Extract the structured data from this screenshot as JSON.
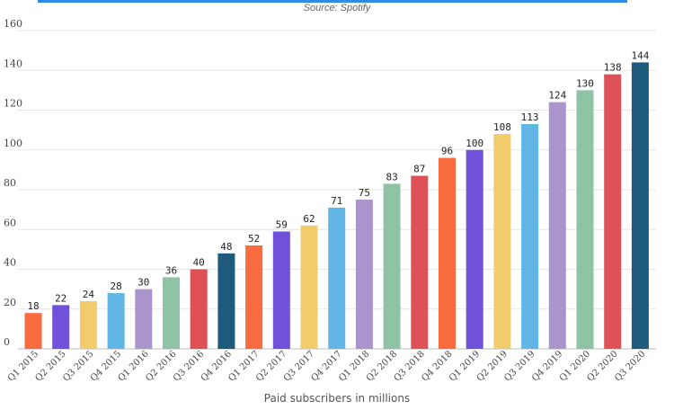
{
  "header": {
    "source": "Source: Spotify"
  },
  "chart_data": {
    "type": "bar",
    "title": "",
    "xlabel": "Paid subscribers in millions",
    "ylabel": "",
    "ylim": [
      0,
      160
    ],
    "yticks": [
      0,
      20,
      40,
      60,
      80,
      100,
      120,
      140,
      160
    ],
    "grid": true,
    "categories": [
      "Q1 2015",
      "Q2 2015",
      "Q3 2015",
      "Q4 2015",
      "Q1 2016",
      "Q2 2016",
      "Q3 2016",
      "Q4 2016",
      "Q1 2017",
      "Q2 2017",
      "Q3 2017",
      "Q4 2017",
      "Q1 2018",
      "Q2 2018",
      "Q3 2018",
      "Q4 2018",
      "Q1 2019",
      "Q2 2019",
      "Q3 2019",
      "Q4 2019",
      "Q1 2020",
      "Q2 2020",
      "Q3 2020"
    ],
    "values": [
      18,
      22,
      24,
      28,
      30,
      36,
      40,
      48,
      52,
      59,
      62,
      71,
      75,
      83,
      87,
      96,
      100,
      108,
      113,
      124,
      130,
      138,
      144
    ],
    "colors": [
      "#f96a3e",
      "#6f52d9",
      "#f2cb6b",
      "#62b6e6",
      "#a994cc",
      "#8fc3a6",
      "#de5157",
      "#1d5a7c",
      "#f96a3e",
      "#6f52d9",
      "#f2cb6b",
      "#62b6e6",
      "#a994cc",
      "#8fc3a6",
      "#de5157",
      "#f96a3e",
      "#6f52d9",
      "#f2cb6b",
      "#62b6e6",
      "#a994cc",
      "#8fc3a6",
      "#de5157",
      "#1d5a7c"
    ]
  }
}
